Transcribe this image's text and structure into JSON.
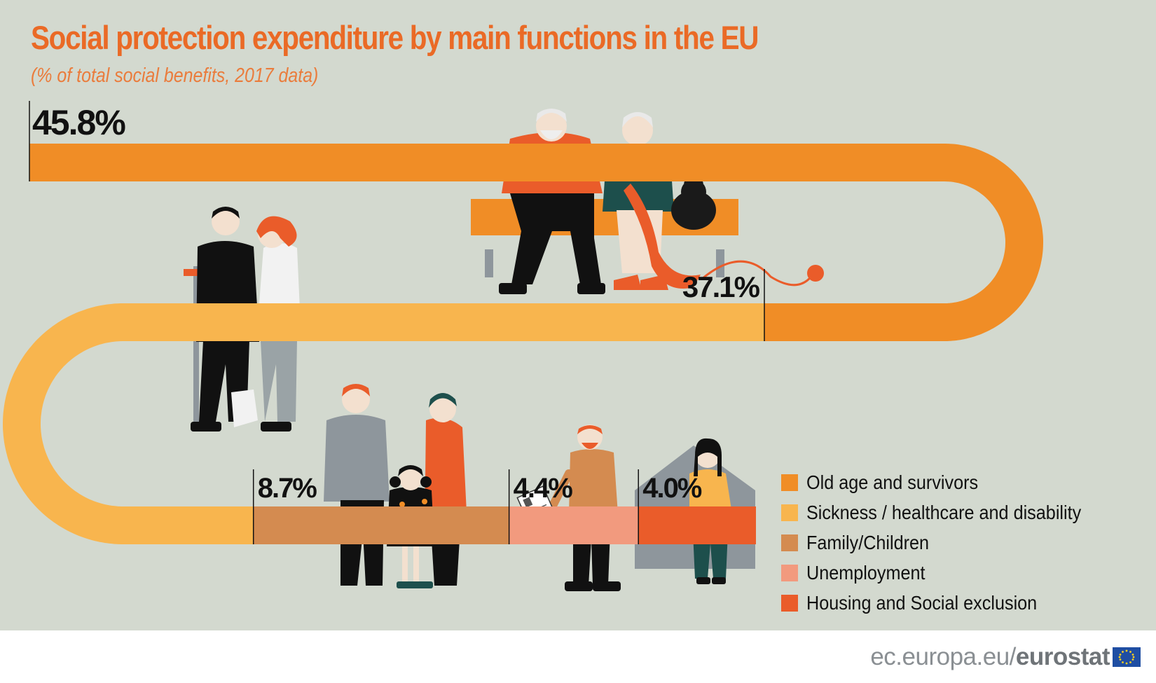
{
  "chart_data": {
    "type": "bar",
    "title": "Social protection expenditure by main functions in the EU",
    "subtitle": "(% of total social benefits, 2017 data)",
    "unit": "%",
    "series": [
      {
        "name": "Old age and survivors",
        "value": 45.8,
        "label": "45.8%",
        "color": "#f08d26"
      },
      {
        "name": "Sickness / healthcare and disability",
        "value": 37.1,
        "label": "37.1%",
        "color": "#f8b54e"
      },
      {
        "name": "Family/Children",
        "value": 8.7,
        "label": "8.7%",
        "color": "#d48b50"
      },
      {
        "name": "Unemployment",
        "value": 4.4,
        "label": "4.4%",
        "color": "#f29a7e"
      },
      {
        "name": "Housing and Social exclusion",
        "value": 4.0,
        "label": "4.0%",
        "color": "#ea5c2a"
      }
    ],
    "legend_position": "bottom-right"
  },
  "footer": {
    "domain": "ec.europa.eu/",
    "brand": "eurostat"
  },
  "icons": {
    "elderly": "elderly-couple-on-bench-icon",
    "sickness": "injured-man-with-nurse-icon",
    "family": "family-with-child-icon",
    "unemployment": "man-holding-cv-icon",
    "housing": "woman-in-house-icon",
    "flag": "eu-flag-icon"
  }
}
